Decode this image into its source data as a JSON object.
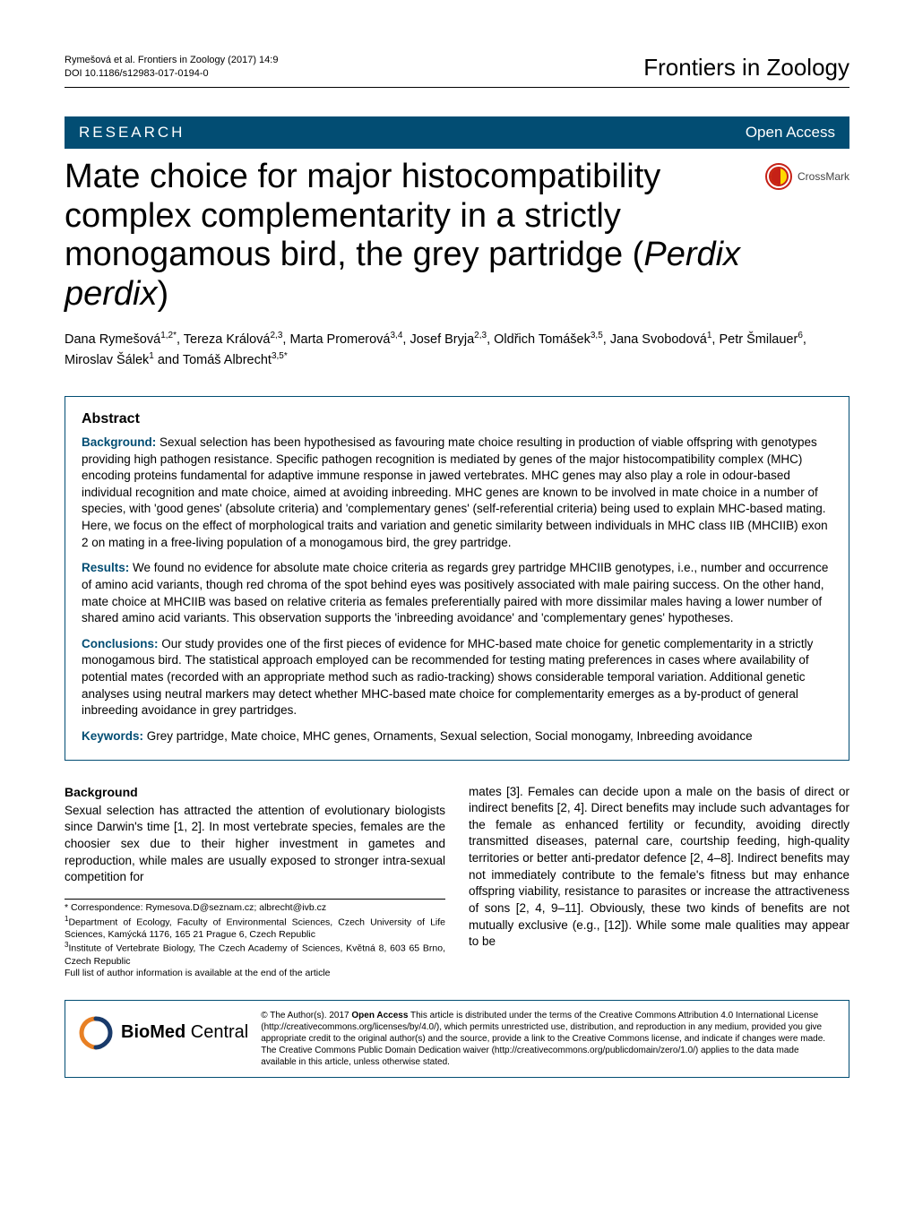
{
  "running_head": {
    "citation": "Rymešová et al. Frontiers in Zoology  (2017) 14:9",
    "doi": "DOI 10.1186/s12983-017-0194-0",
    "journal": "Frontiers in Zoology"
  },
  "banner": {
    "left": "RESEARCH",
    "right": "Open Access"
  },
  "title": {
    "line1": "Mate choice for major histocompatibility complex complementarity in a strictly monogamous bird, the grey partridge (",
    "italic": "Perdix perdix",
    "line3": ")"
  },
  "crossmark_label": "CrossMark",
  "authors_html": "Dana Rymešová<sup>1,2*</sup>, Tereza Králová<sup>2,3</sup>, Marta Promerová<sup>3,4</sup>, Josef Bryja<sup>2,3</sup>, Oldřich Tomášek<sup>3,5</sup>, Jana Svobodová<sup>1</sup>, Petr Šmilauer<sup>6</sup>, Miroslav Šálek<sup>1</sup> and Tomáš Albrecht<sup>3,5*</sup>",
  "abstract": {
    "heading": "Abstract",
    "background_label": "Background:",
    "background_text": " Sexual selection has been hypothesised as favouring mate choice resulting in production of viable offspring with genotypes providing high pathogen resistance. Specific pathogen recognition is mediated by genes of the major histocompatibility complex (MHC) encoding proteins fundamental for adaptive immune response in jawed vertebrates. MHC genes may also play a role in odour-based individual recognition and mate choice, aimed at avoiding inbreeding. MHC genes are known to be involved in mate choice in a number of species, with 'good genes' (absolute criteria) and 'complementary genes' (self-referential criteria) being used to explain MHC-based mating. Here, we focus on the effect of morphological traits and variation and genetic similarity between individuals in MHC class IIB (MHCIIB) exon 2 on mating in a free-living population of a monogamous bird, the grey partridge.",
    "results_label": "Results:",
    "results_text": " We found no evidence for absolute mate choice criteria as regards grey partridge MHCIIB genotypes, i.e., number and occurrence of amino acid variants, though red chroma of the spot behind eyes was positively associated with male pairing success. On the other hand, mate choice at MHCIIB was based on relative criteria as females preferentially paired with more dissimilar males having a lower number of shared amino acid variants. This observation supports the 'inbreeding avoidance' and 'complementary genes' hypotheses.",
    "conclusions_label": "Conclusions:",
    "conclusions_text": " Our study provides one of the first pieces of evidence for MHC-based mate choice for genetic complementarity in a strictly monogamous bird. The statistical approach employed can be recommended for testing mating preferences in cases where availability of potential mates (recorded with an appropriate method such as radio-tracking) shows considerable temporal variation. Additional genetic analyses using neutral markers may detect whether MHC-based mate choice for complementarity emerges as a by-product of general inbreeding avoidance in grey partridges.",
    "keywords_label": "Keywords:",
    "keywords_text": " Grey partridge, Mate choice, MHC genes, Ornaments, Sexual selection, Social monogamy, Inbreeding avoidance"
  },
  "body": {
    "heading": "Background",
    "para1": "Sexual selection has attracted the attention of evolutionary biologists since Darwin's time [1, 2]. In most vertebrate species, females are the choosier sex due to their higher investment in gametes and reproduction, while males are usually exposed to stronger intra-sexual competition for",
    "para2": "mates [3]. Females can decide upon a male on the basis of direct or indirect benefits [2, 4]. Direct benefits may include such advantages for the female as enhanced fertility or fecundity, avoiding directly transmitted diseases, paternal care, courtship feeding, high-quality territories or better anti-predator defence [2, 4–8]. Indirect benefits may not immediately contribute to the female's fitness but may enhance offspring viability, resistance to parasites or increase the attractiveness of sons [2, 4, 9–11]. Obviously, these two kinds of benefits are not mutually exclusive (e.g., [12]). While some male qualities may appear to be"
  },
  "footnotes": {
    "correspondence": "* Correspondence: Rymesova.D@seznam.cz; albrecht@ivb.cz",
    "aff1": "Department of Ecology, Faculty of Environmental Sciences, Czech University of Life Sciences, Kamýcká 1176, 165 21 Prague 6, Czech Republic",
    "aff3": "Institute of Vertebrate Biology, The Czech Academy of Sciences, Květná 8, 603 65 Brno, Czech Republic",
    "full_list": "Full list of author information is available at the end of the article"
  },
  "footer": {
    "logo_text_a": "BioMed",
    "logo_text_b": " Central",
    "license": "© The Author(s). 2017 Open Access This article is distributed under the terms of the Creative Commons Attribution 4.0 International License (http://creativecommons.org/licenses/by/4.0/), which permits unrestricted use, distribution, and reproduction in any medium, provided you give appropriate credit to the original author(s) and the source, provide a link to the Creative Commons license, and indicate if changes were made. The Creative Commons Public Domain Dedication waiver (http://creativecommons.org/publicdomain/zero/1.0/) applies to the data made available in this article, unless otherwise stated."
  },
  "colors": {
    "brand": "#024d73",
    "crossmark_red": "#c62116",
    "crossmark_yellow": "#ffd900",
    "bmc_blue": "#193a6a",
    "bmc_orange": "#e88024"
  }
}
